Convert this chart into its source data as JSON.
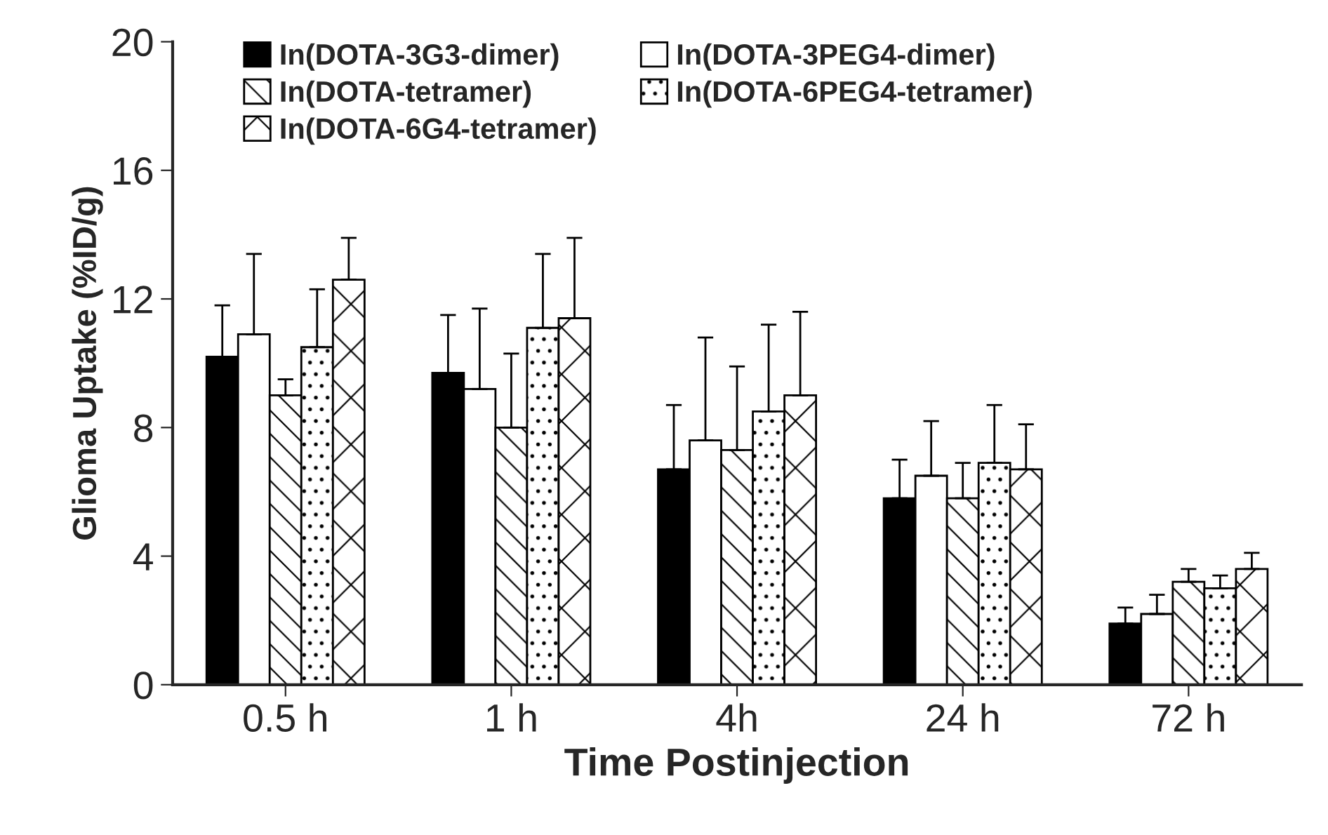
{
  "chart_data": {
    "type": "bar",
    "xlabel": "Time Postinjection",
    "ylabel": "Glioma Uptake (%ID/g)",
    "categories": [
      "0.5 h",
      "1 h",
      "4h",
      "24 h",
      "72 h"
    ],
    "ylim": [
      0,
      20
    ],
    "yticks": [
      0,
      4,
      8,
      12,
      16,
      20
    ],
    "grid": false,
    "legend": "top",
    "series": [
      {
        "name": "In(DOTA-3G3-dimer)",
        "color": "#000000",
        "values": [
          10.2,
          9.7,
          6.7,
          5.8,
          1.9
        ],
        "errors": [
          [
            10.2,
            11.8
          ],
          [
            9.7,
            11.5
          ],
          [
            6.7,
            8.7
          ],
          [
            5.8,
            7.0
          ],
          [
            1.9,
            2.4
          ]
        ]
      },
      {
        "name": "In(DOTA-3PEG4-dimer)",
        "color": "#ffffff",
        "values": [
          10.9,
          9.2,
          7.6,
          6.5,
          2.2
        ],
        "errors": [
          [
            10.9,
            13.4
          ],
          [
            9.2,
            11.7
          ],
          [
            7.6,
            10.8
          ],
          [
            6.5,
            8.2
          ],
          [
            2.2,
            2.8
          ]
        ]
      },
      {
        "name": "In(DOTA-tetramer)",
        "color": "#ffffff",
        "values": [
          9.0,
          8.0,
          7.3,
          5.8,
          3.2
        ],
        "errors": [
          [
            9.0,
            9.5
          ],
          [
            8.0,
            10.3
          ],
          [
            7.3,
            9.9
          ],
          [
            5.8,
            6.9
          ],
          [
            3.2,
            3.6
          ]
        ]
      },
      {
        "name": "In(DOTA-6PEG4-tetramer)",
        "color": "#ffffff",
        "values": [
          10.5,
          11.1,
          8.5,
          6.9,
          3.0
        ],
        "errors": [
          [
            10.5,
            12.3
          ],
          [
            11.1,
            13.4
          ],
          [
            8.5,
            11.2
          ],
          [
            6.9,
            8.7
          ],
          [
            3.0,
            3.4
          ]
        ]
      },
      {
        "name": "In(DOTA-6G4-tetramer)",
        "color": "#ffffff",
        "values": [
          12.6,
          11.4,
          9.0,
          6.7,
          3.6
        ],
        "errors": [
          [
            12.6,
            13.9
          ],
          [
            11.4,
            13.9
          ],
          [
            9.0,
            11.6
          ],
          [
            6.7,
            8.1
          ],
          [
            3.6,
            4.1
          ]
        ]
      }
    ]
  }
}
